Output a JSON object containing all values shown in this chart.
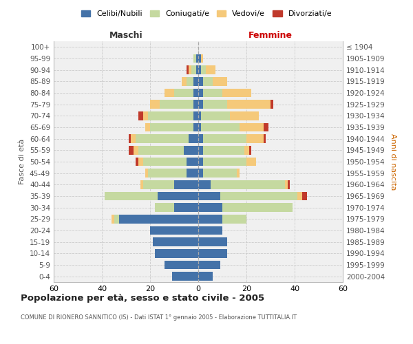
{
  "age_groups": [
    "100+",
    "95-99",
    "90-94",
    "85-89",
    "80-84",
    "75-79",
    "70-74",
    "65-69",
    "60-64",
    "55-59",
    "50-54",
    "45-49",
    "40-44",
    "35-39",
    "30-34",
    "25-29",
    "20-24",
    "15-19",
    "10-14",
    "5-9",
    "0-4"
  ],
  "birth_years": [
    "≤ 1904",
    "1905-1909",
    "1910-1914",
    "1915-1919",
    "1920-1924",
    "1925-1929",
    "1930-1934",
    "1935-1939",
    "1940-1944",
    "1945-1949",
    "1950-1954",
    "1955-1959",
    "1960-1964",
    "1965-1969",
    "1970-1974",
    "1975-1979",
    "1980-1984",
    "1985-1989",
    "1990-1994",
    "1995-1999",
    "2000-2004"
  ],
  "maschi": {
    "celibi": [
      0,
      1,
      1,
      2,
      2,
      2,
      2,
      2,
      4,
      6,
      5,
      5,
      10,
      17,
      10,
      33,
      20,
      19,
      18,
      14,
      11
    ],
    "coniugati": [
      0,
      1,
      2,
      3,
      8,
      14,
      19,
      18,
      22,
      19,
      18,
      16,
      13,
      22,
      8,
      2,
      0,
      0,
      0,
      0,
      0
    ],
    "vedovi": [
      0,
      0,
      1,
      2,
      4,
      4,
      2,
      2,
      2,
      2,
      2,
      1,
      1,
      0,
      0,
      1,
      0,
      0,
      0,
      0,
      0
    ],
    "divorziati": [
      0,
      0,
      1,
      0,
      0,
      0,
      2,
      0,
      1,
      2,
      1,
      0,
      0,
      0,
      0,
      0,
      0,
      0,
      0,
      0,
      0
    ]
  },
  "femmine": {
    "nubili": [
      0,
      1,
      1,
      2,
      2,
      2,
      1,
      1,
      2,
      2,
      2,
      2,
      5,
      9,
      10,
      10,
      10,
      12,
      12,
      9,
      6
    ],
    "coniugate": [
      0,
      0,
      2,
      4,
      8,
      10,
      12,
      16,
      18,
      17,
      18,
      14,
      31,
      32,
      29,
      10,
      0,
      0,
      0,
      0,
      0
    ],
    "vedove": [
      0,
      1,
      4,
      6,
      12,
      18,
      12,
      10,
      7,
      2,
      4,
      1,
      1,
      2,
      0,
      0,
      0,
      0,
      0,
      0,
      0
    ],
    "divorziate": [
      0,
      0,
      0,
      0,
      0,
      1,
      0,
      2,
      1,
      1,
      0,
      0,
      1,
      2,
      0,
      0,
      0,
      0,
      0,
      0,
      0
    ]
  },
  "colors": {
    "celibi": "#4472a8",
    "coniugati": "#c5d9a0",
    "vedovi": "#f5c97a",
    "divorziati": "#c0392b"
  },
  "xlim": 60,
  "title": "Popolazione per età, sesso e stato civile - 2005",
  "subtitle": "COMUNE DI RIONERO SANNITICO (IS) - Dati ISTAT 1° gennaio 2005 - Elaborazione TUTTITALIA.IT",
  "ylabel_left": "Fasce di età",
  "ylabel_right": "Anni di nascita",
  "label_maschi": "Maschi",
  "label_femmine": "Femmine",
  "legend_labels": [
    "Celibi/Nubili",
    "Coniugati/e",
    "Vedovi/e",
    "Divorziati/e"
  ],
  "bg_color": "#f0f0f0",
  "grid_color": "#cccccc"
}
